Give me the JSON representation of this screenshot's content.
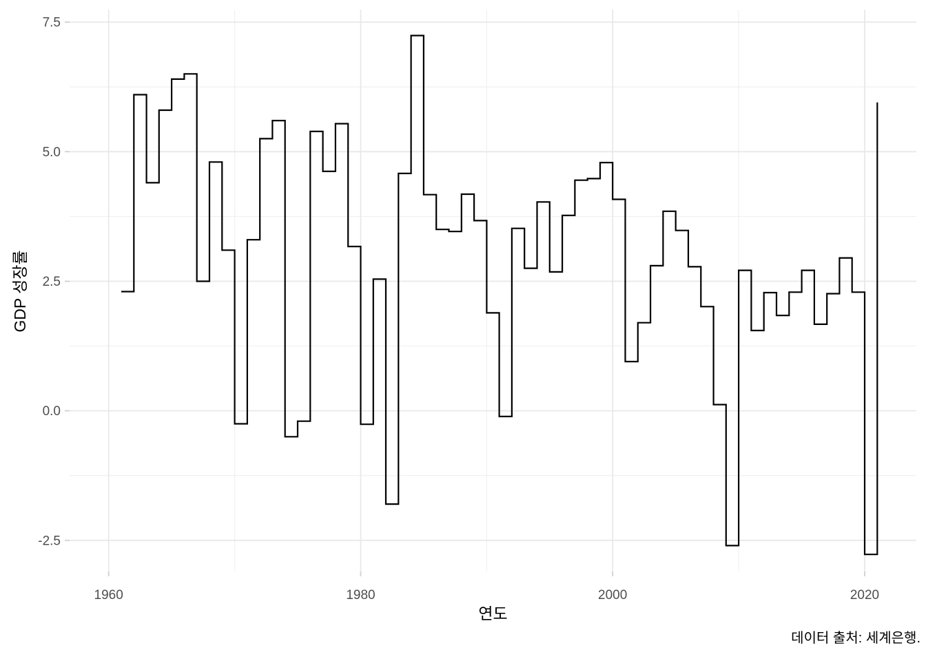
{
  "chart_data": {
    "type": "line",
    "step": true,
    "step_direction": "hv",
    "title": "",
    "xlabel": "연도",
    "ylabel": "GDP 성장률",
    "caption": "데이터 출처: 세계은행.",
    "legend": "none",
    "grid": true,
    "x": [
      1961,
      1962,
      1963,
      1964,
      1965,
      1966,
      1967,
      1968,
      1969,
      1970,
      1971,
      1972,
      1973,
      1974,
      1975,
      1976,
      1977,
      1978,
      1979,
      1980,
      1981,
      1982,
      1983,
      1984,
      1985,
      1986,
      1987,
      1988,
      1989,
      1990,
      1991,
      1992,
      1993,
      1994,
      1995,
      1996,
      1997,
      1998,
      1999,
      2000,
      2001,
      2002,
      2003,
      2004,
      2005,
      2006,
      2007,
      2008,
      2009,
      2010,
      2011,
      2012,
      2013,
      2014,
      2015,
      2016,
      2017,
      2018,
      2019,
      2020,
      2021
    ],
    "values": [
      2.3,
      6.1,
      4.4,
      5.8,
      6.4,
      6.5,
      2.5,
      4.8,
      3.1,
      -0.25,
      3.3,
      5.25,
      5.6,
      -0.5,
      -0.2,
      5.39,
      4.62,
      5.54,
      3.17,
      -0.26,
      2.54,
      -1.8,
      4.58,
      7.24,
      4.17,
      3.5,
      3.46,
      4.18,
      3.67,
      1.89,
      -0.11,
      3.52,
      2.75,
      4.03,
      2.68,
      3.77,
      4.45,
      4.48,
      4.79,
      4.08,
      0.95,
      1.7,
      2.8,
      3.85,
      3.48,
      2.78,
      2.01,
      0.12,
      -2.6,
      2.71,
      1.55,
      2.28,
      1.84,
      2.29,
      2.71,
      1.67,
      2.26,
      2.95,
      2.29,
      -2.77,
      5.95
    ],
    "xlim": [
      1956.9,
      2024.1
    ],
    "ylim": [
      -3.1,
      7.74
    ],
    "x_ticks": [
      1960,
      1980,
      2000,
      2020
    ],
    "x_tick_labels": [
      "1960",
      "1980",
      "2000",
      "2020"
    ],
    "x_minor_breaks": [
      1970,
      1990,
      2010
    ],
    "y_ticks": [
      -2.5,
      0.0,
      2.5,
      5.0,
      7.5
    ],
    "y_tick_labels": [
      "-2.5",
      "0.0",
      "2.5",
      "5.0",
      "7.5"
    ],
    "y_minor_breaks": [
      -1.25,
      1.25,
      3.75,
      6.25
    ],
    "colors": {
      "line": "#000000",
      "background": "#ffffff",
      "grid_major": "#e8e8e8",
      "grid_minor": "#efefef",
      "tick": "#d0d0d0",
      "tick_label": "#4d4d4d",
      "axis_title": "#000000",
      "caption_text": "#000000"
    }
  }
}
